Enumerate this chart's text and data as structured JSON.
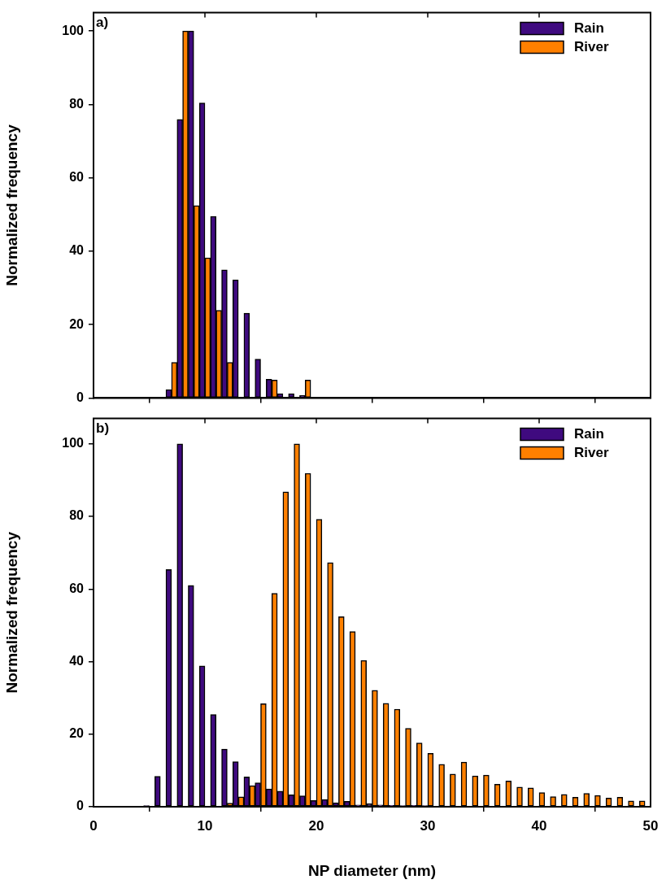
{
  "chart_data": [
    {
      "type": "bar",
      "ylabel": "Normalized frequency",
      "annotations": [
        "a)"
      ],
      "legend": "top right",
      "tick_labels": "y",
      "x": [
        7,
        8,
        9,
        10,
        11,
        12,
        13,
        14,
        15,
        16,
        17,
        18,
        19
      ],
      "xlim": [
        0,
        50
      ],
      "xticks": [
        0,
        10,
        20,
        30,
        40,
        50
      ],
      "ylim": [
        0,
        105
      ],
      "yticks": [
        0,
        20,
        40,
        60,
        80,
        100
      ],
      "series": [
        {
          "name": "Rain",
          "color": "#3f0a7f",
          "values": [
            2.3,
            75.9,
            100,
            80.4,
            49.5,
            34.9,
            32.2,
            23.1,
            10.6,
            5.1,
            1.2,
            1.2,
            0.7
          ]
        },
        {
          "name": "River",
          "color": "#ff8000",
          "values": [
            9.7,
            100,
            52.4,
            38.2,
            23.9,
            9.7,
            0,
            0,
            0,
            4.9,
            0,
            0,
            4.9
          ]
        }
      ]
    },
    {
      "type": "bar",
      "xlabel": "NP diameter (nm)",
      "ylabel": "Normalized frequency",
      "annotations": [
        "b)"
      ],
      "legend": "top right",
      "x": [
        5,
        6,
        7,
        8,
        9,
        10,
        11,
        12,
        13,
        14,
        15,
        16,
        17,
        18,
        19,
        20,
        21,
        22,
        23,
        24,
        25,
        26,
        27,
        28,
        29,
        30,
        31,
        32,
        33,
        34,
        35,
        36,
        37,
        38,
        39,
        40,
        41,
        42,
        43,
        44,
        45,
        46,
        47,
        48,
        49
      ],
      "xlim": [
        0,
        50
      ],
      "xticks": [
        0,
        10,
        20,
        30,
        40,
        50
      ],
      "ylim": [
        0,
        107
      ],
      "yticks": [
        0,
        20,
        40,
        60,
        80,
        100
      ],
      "series": [
        {
          "name": "Rain",
          "color": "#3f0a7f",
          "values": [
            0.3,
            8.4,
            65.4,
            100,
            61,
            38.8,
            25.4,
            15.9,
            12.4,
            8.2,
            6.6,
            4.9,
            4.3,
            3.3,
            3,
            1.7,
            2,
            1.1,
            1.5,
            0.5,
            0.8,
            0.5,
            0.4,
            0.3,
            0.4,
            0.3,
            null,
            0.2,
            0,
            0,
            0,
            0,
            0,
            0,
            0,
            0,
            0,
            0,
            0,
            0,
            0,
            0,
            0,
            0,
            0
          ]
        },
        {
          "name": "River",
          "color": "#ff8000",
          "values": [
            0,
            0,
            0,
            0,
            0,
            0,
            0,
            1,
            2.7,
            5.8,
            28.4,
            58.8,
            86.8,
            100,
            91.9,
            79.2,
            67.3,
            52.4,
            48.3,
            40.3,
            32.1,
            28.5,
            26.9,
            21.6,
            17.6,
            14.7,
            11.7,
            9,
            12.3,
            8.5,
            8.7,
            6.2,
            7.1,
            5.4,
            5.2,
            3.9,
            2.8,
            3.4,
            2.6,
            3.7,
            3.1,
            2.4,
            2.6,
            1.6,
            1.6
          ]
        }
      ]
    }
  ]
}
